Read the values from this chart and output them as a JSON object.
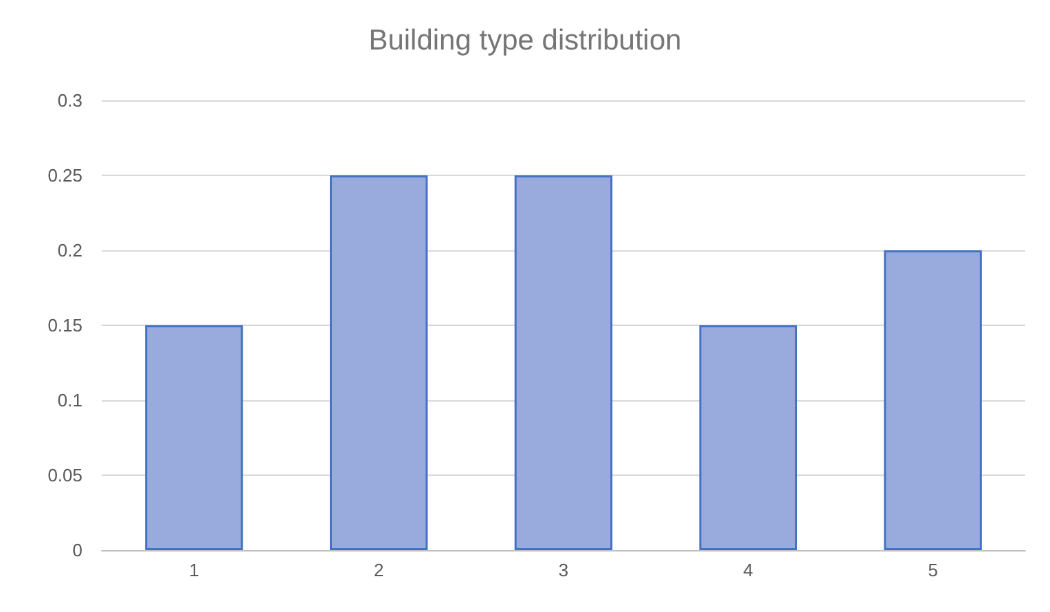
{
  "chart_data": {
    "type": "bar",
    "title": "Building type distribution",
    "categories": [
      "1",
      "2",
      "3",
      "4",
      "5"
    ],
    "values": [
      0.15,
      0.25,
      0.25,
      0.15,
      0.2
    ],
    "color": "#98abdc",
    "ylim": [
      0,
      0.3
    ],
    "yticks": [
      0,
      0.05,
      0.1,
      0.15,
      0.2,
      0.25,
      0.3
    ],
    "grid": "y"
  }
}
